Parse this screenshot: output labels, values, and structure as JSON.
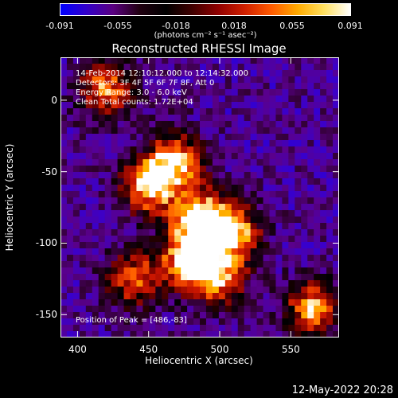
{
  "colorbar": {
    "ticks": [
      "-0.091",
      "-0.055",
      "-0.018",
      "0.018",
      "0.055",
      "0.091"
    ],
    "unit_label": "(photons cm⁻² s⁻¹ asec⁻²)",
    "colors": [
      "#0000ff",
      "#3300c8",
      "#5a0080",
      "#200010",
      "#000000",
      "#400000",
      "#900000",
      "#d02000",
      "#ff5a00",
      "#ffaa00",
      "#ffe060",
      "#ffffff"
    ]
  },
  "chart_data": {
    "type": "heatmap",
    "title": "Reconstructed RHESSI Image",
    "xlabel": "Heliocentric X (arcsec)",
    "ylabel": "Heliocentric Y (arcsec)",
    "xlim": [
      388,
      584
    ],
    "ylim": [
      -166,
      30
    ],
    "x_ticks": [
      400,
      450,
      500,
      550
    ],
    "y_ticks": [
      0,
      -50,
      -100,
      -150
    ],
    "value_range": [
      -0.091,
      0.091
    ],
    "annotations": {
      "time": "14-Feb-2014 12:10:12.000 to 12:14:32.000",
      "detectors": "Detectors: 3F 4F 5F 6F 7F 8F, Att 0",
      "energy": "Energy Range: 3.0 - 6.0 keV",
      "clean": "Clean     Total counts: 1.72E+04",
      "peak": "Position of Peak = [486,-83]"
    },
    "sources": [
      {
        "x": 486,
        "y": -83,
        "value": 0.091
      },
      {
        "x": 450,
        "y": -60,
        "value": 0.08
      },
      {
        "x": 478,
        "y": -112,
        "value": 0.075
      },
      {
        "x": 470,
        "y": -42,
        "value": 0.07
      },
      {
        "x": 420,
        "y": 8,
        "value": 0.06
      },
      {
        "x": 510,
        "y": -92,
        "value": 0.07
      },
      {
        "x": 565,
        "y": -146,
        "value": 0.065
      },
      {
        "x": 440,
        "y": -125,
        "value": 0.05
      },
      {
        "x": 500,
        "y": -125,
        "value": 0.055
      }
    ]
  },
  "timestamp": "12-May-2022 20:28"
}
